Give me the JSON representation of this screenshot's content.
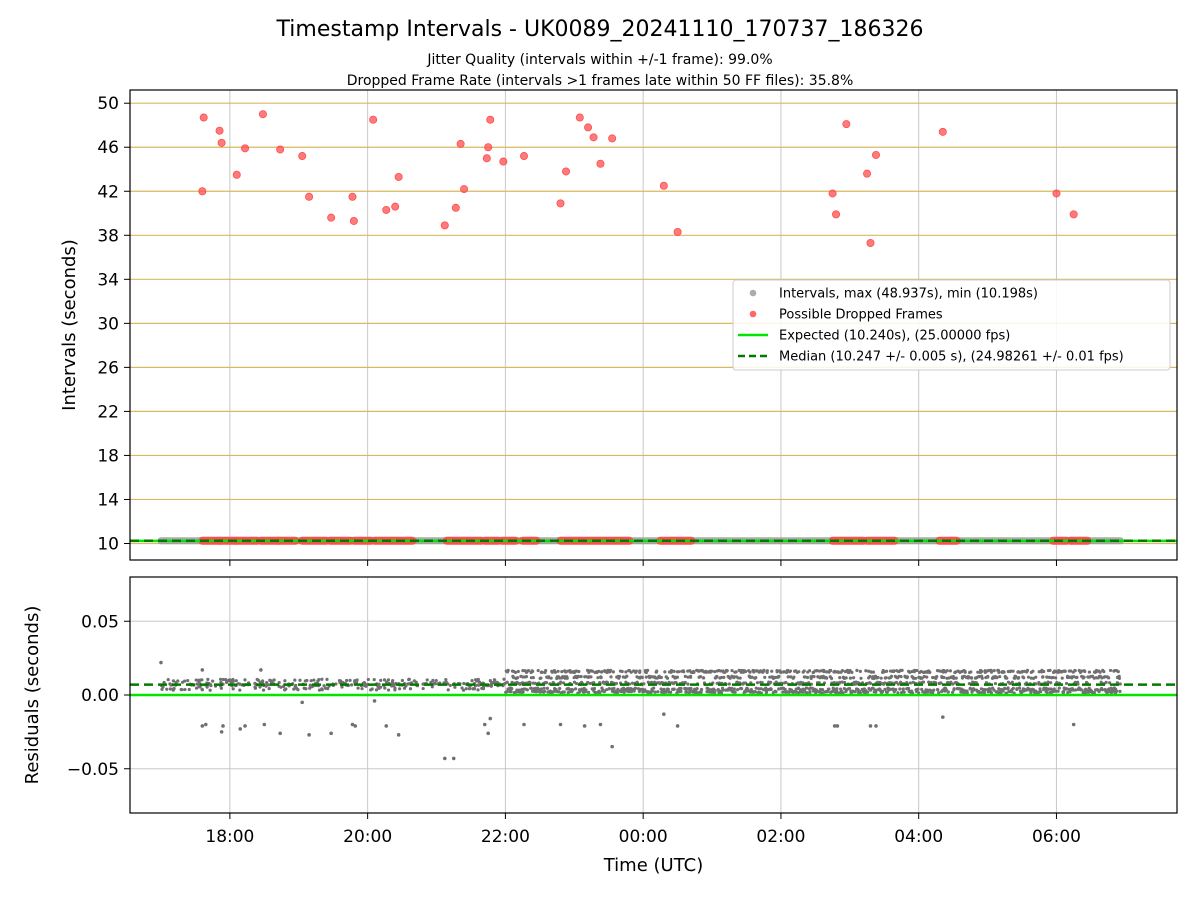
{
  "title": "Timestamp Intervals - UK0089_20241110_170737_186326",
  "subtitle_1": "Jitter Quality (intervals within +/-1 frame): 99.0%",
  "subtitle_2": "Dropped Frame Rate (intervals >1 frames late within 50 FF files): 35.8%",
  "colors": {
    "interval_points": "#9e9e9e",
    "dropped_points": "#ff4d4d",
    "expected_line": "#00e600",
    "median_line": "#007a00",
    "residual_points": "#707070",
    "hgrid_top": "#d8b962",
    "grid": "#c8c8c8"
  },
  "chart_data": [
    {
      "type": "scatter",
      "panel": "top",
      "ylabel": "Intervals (seconds)",
      "xlabel": "",
      "ylim": [
        8.5,
        51.2
      ],
      "yticks": [
        10,
        14,
        18,
        22,
        26,
        30,
        34,
        38,
        42,
        46,
        50
      ],
      "ytick_labels": [
        "10",
        "14",
        "18",
        "22",
        "26",
        "30",
        "34",
        "38",
        "42",
        "46",
        "50"
      ],
      "xlim_hours": [
        16.55,
        31.75
      ],
      "xticks_hours": [
        18,
        20,
        22,
        24,
        26,
        28,
        30
      ],
      "grid": "vertical grid gray, horizontal grid gold",
      "legend_position": "right",
      "legend": [
        {
          "label": "Intervals, max (48.937s), min (10.198s)",
          "kind": "dot",
          "color": "#9e9e9e"
        },
        {
          "label": "Possible Dropped Frames",
          "kind": "dot",
          "color": "#ff4d4d"
        },
        {
          "label": "Expected (10.240s), (25.00000 fps)",
          "kind": "line",
          "color": "#00e600"
        },
        {
          "label": "Median (10.247 +/- 0.005 s), (24.98261 +/- 0.01 fps)",
          "kind": "dash",
          "color": "#007a00"
        }
      ],
      "expected": 10.24,
      "median": 10.247,
      "intervals_band": {
        "y": 10.247,
        "x_range_hours": [
          17.0,
          30.93
        ]
      },
      "dropped_frames_low": {
        "y": 10.25,
        "x_ranges_hours": [
          [
            17.6,
            17.85
          ],
          [
            17.85,
            18.1
          ],
          [
            18.1,
            18.4
          ],
          [
            18.45,
            18.7
          ],
          [
            18.7,
            18.95
          ],
          [
            19.05,
            19.4
          ],
          [
            19.45,
            19.75
          ],
          [
            19.8,
            20.05
          ],
          [
            20.1,
            20.65
          ],
          [
            21.15,
            21.65
          ],
          [
            21.7,
            21.9
          ],
          [
            21.95,
            22.15
          ],
          [
            22.25,
            22.45
          ],
          [
            22.8,
            23.8
          ],
          [
            24.25,
            24.7
          ],
          [
            26.75,
            27.2
          ],
          [
            27.25,
            27.65
          ],
          [
            28.3,
            28.55
          ],
          [
            29.95,
            30.15
          ],
          [
            30.2,
            30.45
          ]
        ]
      },
      "dropped_frames_high": [
        {
          "x": 17.6,
          "y": 42.0
        },
        {
          "x": 17.62,
          "y": 48.7
        },
        {
          "x": 17.85,
          "y": 47.5
        },
        {
          "x": 17.88,
          "y": 46.4
        },
        {
          "x": 18.1,
          "y": 43.5
        },
        {
          "x": 18.22,
          "y": 45.9
        },
        {
          "x": 18.48,
          "y": 49.0
        },
        {
          "x": 18.73,
          "y": 45.8
        },
        {
          "x": 19.05,
          "y": 45.2
        },
        {
          "x": 19.15,
          "y": 41.5
        },
        {
          "x": 19.47,
          "y": 39.6
        },
        {
          "x": 19.78,
          "y": 41.5
        },
        {
          "x": 19.8,
          "y": 39.3
        },
        {
          "x": 20.08,
          "y": 48.5
        },
        {
          "x": 20.27,
          "y": 40.3
        },
        {
          "x": 20.4,
          "y": 40.6
        },
        {
          "x": 20.45,
          "y": 43.3
        },
        {
          "x": 21.12,
          "y": 38.9
        },
        {
          "x": 21.28,
          "y": 40.5
        },
        {
          "x": 21.35,
          "y": 46.3
        },
        {
          "x": 21.4,
          "y": 42.2
        },
        {
          "x": 21.73,
          "y": 45.0
        },
        {
          "x": 21.75,
          "y": 46.0
        },
        {
          "x": 21.78,
          "y": 48.5
        },
        {
          "x": 21.97,
          "y": 44.7
        },
        {
          "x": 22.27,
          "y": 45.2
        },
        {
          "x": 22.8,
          "y": 40.9
        },
        {
          "x": 22.88,
          "y": 43.8
        },
        {
          "x": 23.08,
          "y": 48.7
        },
        {
          "x": 23.2,
          "y": 47.8
        },
        {
          "x": 23.28,
          "y": 46.9
        },
        {
          "x": 23.38,
          "y": 44.5
        },
        {
          "x": 23.55,
          "y": 46.8
        },
        {
          "x": 24.3,
          "y": 42.5
        },
        {
          "x": 24.5,
          "y": 38.3
        },
        {
          "x": 26.75,
          "y": 41.8
        },
        {
          "x": 26.8,
          "y": 39.9
        },
        {
          "x": 26.95,
          "y": 48.1
        },
        {
          "x": 27.25,
          "y": 43.6
        },
        {
          "x": 27.3,
          "y": 37.3
        },
        {
          "x": 27.38,
          "y": 45.3
        },
        {
          "x": 28.35,
          "y": 47.4
        },
        {
          "x": 30.0,
          "y": 41.8
        },
        {
          "x": 30.25,
          "y": 39.9
        }
      ]
    },
    {
      "type": "scatter",
      "panel": "bottom",
      "ylabel": "Residuals (seconds)",
      "xlabel": "Time (UTC)",
      "ylim": [
        -0.08,
        0.08
      ],
      "yticks": [
        -0.05,
        0.0,
        0.05
      ],
      "ytick_labels": [
        "−0.05",
        "0.00",
        "0.05"
      ],
      "xlim_hours": [
        16.55,
        31.75
      ],
      "xticks_hours": [
        18,
        20,
        22,
        24,
        26,
        28,
        30
      ],
      "xtick_labels": [
        "18:00",
        "20:00",
        "22:00",
        "00:00",
        "02:00",
        "04:00",
        "06:00"
      ],
      "grid": true,
      "expected_residual": 0.0,
      "median_residual": 0.007,
      "residual_regimes": [
        {
          "x_range_hours": [
            17.0,
            22.0
          ],
          "values": [
            0.004,
            0.006,
            0.007,
            0.008,
            0.01
          ]
        },
        {
          "x_range_hours": [
            22.0,
            30.93
          ],
          "values": [
            0.002,
            0.004,
            0.008,
            0.012,
            0.016
          ]
        }
      ],
      "residual_outliers": [
        {
          "x": 17.0,
          "y": 0.022
        },
        {
          "x": 17.6,
          "y": -0.021
        },
        {
          "x": 17.65,
          "y": -0.02
        },
        {
          "x": 17.6,
          "y": 0.017
        },
        {
          "x": 17.88,
          "y": -0.025
        },
        {
          "x": 17.9,
          "y": -0.021
        },
        {
          "x": 18.15,
          "y": -0.023
        },
        {
          "x": 18.22,
          "y": -0.021
        },
        {
          "x": 18.5,
          "y": -0.02
        },
        {
          "x": 18.73,
          "y": -0.026
        },
        {
          "x": 18.45,
          "y": 0.017
        },
        {
          "x": 19.05,
          "y": -0.005
        },
        {
          "x": 19.15,
          "y": -0.027
        },
        {
          "x": 19.47,
          "y": -0.026
        },
        {
          "x": 19.78,
          "y": -0.02
        },
        {
          "x": 19.82,
          "y": -0.021
        },
        {
          "x": 20.1,
          "y": -0.004
        },
        {
          "x": 20.27,
          "y": -0.021
        },
        {
          "x": 20.45,
          "y": -0.027
        },
        {
          "x": 21.12,
          "y": -0.043
        },
        {
          "x": 21.25,
          "y": -0.043
        },
        {
          "x": 21.7,
          "y": -0.02
        },
        {
          "x": 21.75,
          "y": -0.026
        },
        {
          "x": 21.78,
          "y": -0.016
        },
        {
          "x": 22.27,
          "y": -0.02
        },
        {
          "x": 22.8,
          "y": -0.02
        },
        {
          "x": 23.15,
          "y": -0.021
        },
        {
          "x": 23.38,
          "y": -0.02
        },
        {
          "x": 23.55,
          "y": -0.035
        },
        {
          "x": 24.3,
          "y": -0.013
        },
        {
          "x": 24.5,
          "y": -0.021
        },
        {
          "x": 26.78,
          "y": -0.021
        },
        {
          "x": 26.82,
          "y": -0.021
        },
        {
          "x": 27.3,
          "y": -0.021
        },
        {
          "x": 27.38,
          "y": -0.021
        },
        {
          "x": 28.35,
          "y": -0.015
        },
        {
          "x": 30.25,
          "y": -0.02
        }
      ]
    }
  ]
}
